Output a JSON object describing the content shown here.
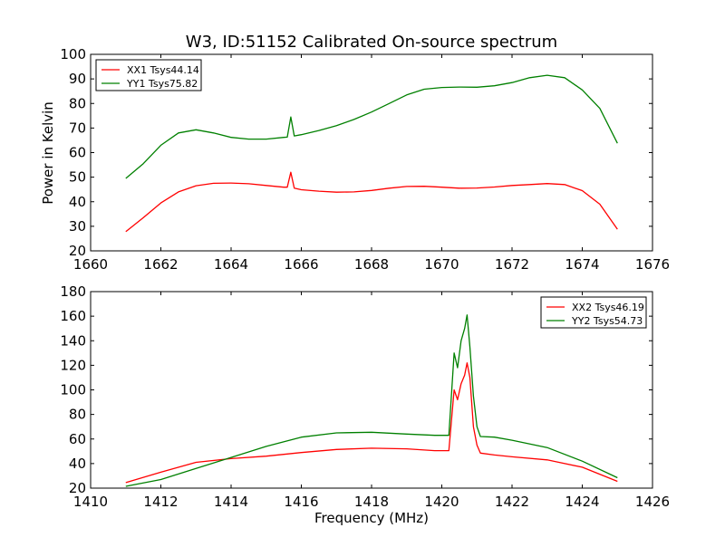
{
  "figure": {
    "title": "W3, ID:51152 Calibrated On-source spectrum",
    "ylabel": "Power in Kelvin",
    "xlabel": "Frequency (MHz)"
  },
  "chart_data": [
    {
      "type": "line",
      "xlim": [
        1660,
        1676
      ],
      "ylim": [
        20,
        100
      ],
      "xticks": [
        1660,
        1662,
        1664,
        1666,
        1668,
        1670,
        1672,
        1674,
        1676
      ],
      "yticks": [
        20,
        30,
        40,
        50,
        60,
        70,
        80,
        90,
        100
      ],
      "legend_position": "upper-left",
      "series": [
        {
          "name": "XX1 Tsys44.14",
          "color": "#ff0000",
          "x": [
            1661.0,
            1661.5,
            1662.0,
            1662.5,
            1663.0,
            1663.5,
            1664.0,
            1664.5,
            1665.0,
            1665.5,
            1665.6,
            1665.7,
            1665.8,
            1666.0,
            1666.5,
            1667.0,
            1667.5,
            1668.0,
            1668.5,
            1669.0,
            1669.5,
            1670.0,
            1670.5,
            1671.0,
            1671.5,
            1672.0,
            1672.5,
            1673.0,
            1673.5,
            1674.0,
            1674.5,
            1675.0
          ],
          "y": [
            27.8,
            33.5,
            39.5,
            44.0,
            46.5,
            47.5,
            47.6,
            47.3,
            46.6,
            45.9,
            45.9,
            52.0,
            45.5,
            44.9,
            44.3,
            43.9,
            44.0,
            44.6,
            45.5,
            46.2,
            46.3,
            45.9,
            45.5,
            45.6,
            46.0,
            46.6,
            47.0,
            47.4,
            47.0,
            44.5,
            39.0,
            28.8
          ]
        },
        {
          "name": "YY1 Tsys75.82",
          "color": "#008000",
          "x": [
            1661.0,
            1661.5,
            1662.0,
            1662.5,
            1663.0,
            1663.5,
            1664.0,
            1664.5,
            1665.0,
            1665.5,
            1665.6,
            1665.7,
            1665.8,
            1666.0,
            1666.5,
            1667.0,
            1667.5,
            1668.0,
            1668.5,
            1669.0,
            1669.5,
            1670.0,
            1670.5,
            1671.0,
            1671.5,
            1672.0,
            1672.5,
            1673.0,
            1673.5,
            1674.0,
            1674.5,
            1675.0
          ],
          "y": [
            49.5,
            55.5,
            63.0,
            68.0,
            69.3,
            68.0,
            66.2,
            65.5,
            65.5,
            66.2,
            66.3,
            74.5,
            66.8,
            67.3,
            69.0,
            71.0,
            73.5,
            76.5,
            80.0,
            83.5,
            85.8,
            86.5,
            86.7,
            86.6,
            87.2,
            88.5,
            90.5,
            91.5,
            90.5,
            85.5,
            78.0,
            63.8
          ]
        }
      ]
    },
    {
      "type": "line",
      "xlim": [
        1410,
        1426
      ],
      "ylim": [
        20,
        180
      ],
      "xticks": [
        1410,
        1412,
        1414,
        1416,
        1418,
        1420,
        1422,
        1424,
        1426
      ],
      "yticks": [
        20,
        40,
        60,
        80,
        100,
        120,
        140,
        160,
        180
      ],
      "xlabel": "Frequency (MHz)",
      "legend_position": "upper-right",
      "series": [
        {
          "name": "XX2 Tsys46.19",
          "color": "#ff0000",
          "x": [
            1411.0,
            1412.0,
            1413.0,
            1414.0,
            1415.0,
            1416.0,
            1417.0,
            1418.0,
            1419.0,
            1419.8,
            1420.2,
            1420.35,
            1420.45,
            1420.55,
            1420.65,
            1420.72,
            1420.8,
            1420.9,
            1421.0,
            1421.1,
            1421.5,
            1422.0,
            1423.0,
            1424.0,
            1425.0
          ],
          "y": [
            24.5,
            33.0,
            41.0,
            44.0,
            46.0,
            49.0,
            51.5,
            52.5,
            52.0,
            50.5,
            50.5,
            100.0,
            92.0,
            105.0,
            112.0,
            122.0,
            110.0,
            70.0,
            55.0,
            48.5,
            47.0,
            45.5,
            43.0,
            37.0,
            25.5
          ]
        },
        {
          "name": "YY2 Tsys54.73",
          "color": "#008000",
          "x": [
            1411.0,
            1412.0,
            1413.0,
            1414.0,
            1415.0,
            1416.0,
            1417.0,
            1418.0,
            1419.0,
            1419.8,
            1420.2,
            1420.35,
            1420.45,
            1420.55,
            1420.65,
            1420.72,
            1420.8,
            1420.9,
            1421.0,
            1421.1,
            1421.5,
            1422.0,
            1423.0,
            1424.0,
            1425.0
          ],
          "y": [
            21.5,
            27.0,
            36.0,
            45.0,
            54.0,
            61.5,
            65.0,
            65.5,
            64.0,
            63.0,
            63.0,
            130.0,
            118.0,
            140.0,
            150.0,
            161.0,
            135.0,
            95.0,
            70.0,
            62.0,
            61.5,
            59.0,
            53.0,
            42.0,
            28.5
          ]
        }
      ]
    }
  ]
}
